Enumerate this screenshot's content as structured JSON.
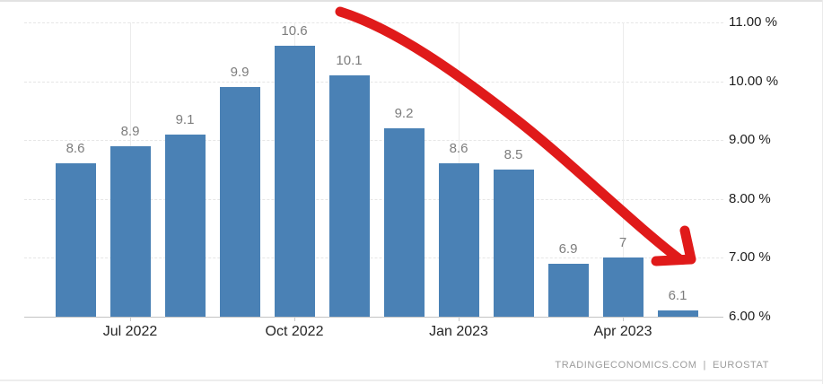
{
  "chart_data": {
    "type": "bar",
    "title": "",
    "values": [
      8.6,
      8.9,
      9.1,
      9.9,
      10.6,
      10.1,
      9.2,
      8.6,
      8.5,
      6.9,
      7,
      6.1
    ],
    "bar_value_labels": [
      "8.6",
      "8.9",
      "9.1",
      "9.9",
      "10.6",
      "10.1",
      "9.2",
      "8.6",
      "8.5",
      "6.9",
      "7",
      "6.1"
    ],
    "x_tick_labels": [
      {
        "label": "Jul 2022",
        "bar_index": 1
      },
      {
        "label": "Oct 2022",
        "bar_index": 4
      },
      {
        "label": "Jan 2023",
        "bar_index": 7
      },
      {
        "label": "Apr 2023",
        "bar_index": 10
      }
    ],
    "y_tick_labels": [
      "11.00 %",
      "10.00 %",
      "9.00 %",
      "8.00 %",
      "7.00 %",
      "6.00 %"
    ],
    "y_axis": {
      "min": 6.0,
      "max": 11.0,
      "position": "right",
      "unit": "%"
    },
    "grid": true,
    "legend": false,
    "bar_color": "#4a81b5",
    "value_label_color": "#7d7d7d",
    "annotation": {
      "type": "arrow",
      "description": "thick red arrow curving down-right from top center to the 7 percent level",
      "color": "#e01a1a"
    }
  },
  "footer": {
    "site": "TRADINGECONOMICS.COM",
    "separator": "|",
    "provider": "EUROSTAT"
  }
}
